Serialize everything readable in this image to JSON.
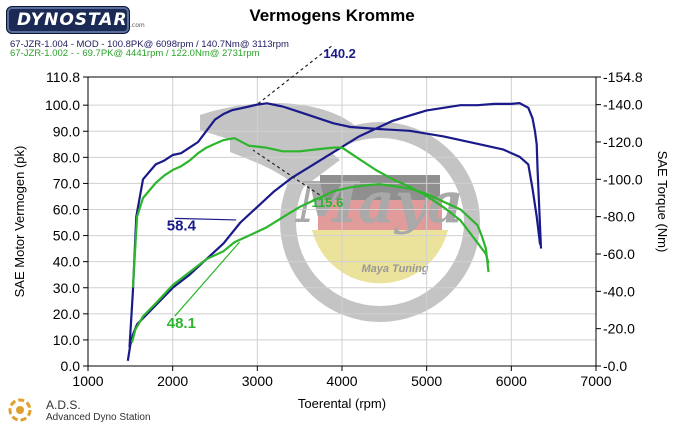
{
  "header": {
    "logo_text": "DYNOSTAR",
    "logo_suffix": ".com",
    "title": "Vermogens Kromme",
    "run1": "67-JZR-1.004 - MOD - 100.8PK@ 6098rpm / 140.7Nm@ 3113rpm",
    "run2": "67-JZR-1.002 - - 69.7PK@ 4441rpm / 122.0Nm@ 2731rpm"
  },
  "watermark": {
    "brand": "Maya",
    "subtitle": "Maya Tuning"
  },
  "footer": {
    "title": "A.D.S.",
    "subtitle": "Advanced Dyno Station"
  },
  "colors": {
    "run1": "#1a1a8a",
    "run2": "#2db52d",
    "grid": "#d0d0d0"
  },
  "chart_data": {
    "type": "line",
    "xlabel": "Toerental (rpm)",
    "ylabel_left": "SAE Motor Vermogen (pk)",
    "ylabel_right": "SAE Torque (Nm)",
    "xlim": [
      1000,
      7000
    ],
    "ylim_left": [
      0,
      110.8
    ],
    "ylim_right": [
      0,
      154.8
    ],
    "grid": true,
    "x_ticks": [
      "1000",
      "2000",
      "3000",
      "4000",
      "5000",
      "6000",
      "7000"
    ],
    "y_left_ticks": [
      "0.0",
      "10.0",
      "20.0",
      "30.0",
      "40.0",
      "50.0",
      "60.0",
      "70.0",
      "80.0",
      "90.0",
      "100.0",
      "110.8"
    ],
    "y_right_ticks": [
      "0.0",
      "20.0",
      "40.0",
      "60.0",
      "80.0",
      "100.0",
      "120.0",
      "140.0",
      "154.8"
    ],
    "series": [
      {
        "name": "67-JZR-1.004 power",
        "run": "run1",
        "axis": "left",
        "points": [
          [
            1470,
            2
          ],
          [
            1500,
            8
          ],
          [
            1530,
            12
          ],
          [
            1580,
            16
          ],
          [
            1700,
            20
          ],
          [
            1850,
            25
          ],
          [
            2000,
            30
          ],
          [
            2200,
            35
          ],
          [
            2400,
            41
          ],
          [
            2600,
            47
          ],
          [
            2800,
            55
          ],
          [
            3000,
            61
          ],
          [
            3200,
            67
          ],
          [
            3400,
            72
          ],
          [
            3600,
            76
          ],
          [
            3800,
            80
          ],
          [
            4000,
            84
          ],
          [
            4200,
            88
          ],
          [
            4400,
            91
          ],
          [
            4600,
            94
          ],
          [
            4800,
            96
          ],
          [
            5000,
            98
          ],
          [
            5200,
            99
          ],
          [
            5400,
            100
          ],
          [
            5600,
            100
          ],
          [
            5800,
            100.5
          ],
          [
            6000,
            100.5
          ],
          [
            6098,
            100.8
          ],
          [
            6200,
            99
          ],
          [
            6250,
            95
          ],
          [
            6280,
            90
          ],
          [
            6300,
            85
          ],
          [
            6310,
            75
          ],
          [
            6330,
            60
          ],
          [
            6350,
            45
          ]
        ]
      },
      {
        "name": "67-JZR-1.004 torque",
        "run": "run1",
        "axis": "right",
        "points": [
          [
            1490,
            10
          ],
          [
            1530,
            40
          ],
          [
            1570,
            80
          ],
          [
            1650,
            100
          ],
          [
            1800,
            108
          ],
          [
            1900,
            110
          ],
          [
            2000,
            113
          ],
          [
            2100,
            114
          ],
          [
            2200,
            117
          ],
          [
            2300,
            120
          ],
          [
            2400,
            126
          ],
          [
            2500,
            132
          ],
          [
            2600,
            135
          ],
          [
            2700,
            137
          ],
          [
            2800,
            138
          ],
          [
            2900,
            139
          ],
          [
            3000,
            140
          ],
          [
            3113,
            140.7
          ],
          [
            3300,
            139
          ],
          [
            3500,
            136
          ],
          [
            3700,
            133
          ],
          [
            3900,
            130
          ],
          [
            4100,
            128
          ],
          [
            4400,
            127
          ],
          [
            4800,
            126
          ],
          [
            5200,
            123
          ],
          [
            5600,
            119
          ],
          [
            5900,
            116
          ],
          [
            6100,
            112
          ],
          [
            6200,
            108
          ],
          [
            6250,
            95
          ],
          [
            6300,
            80
          ],
          [
            6340,
            65
          ]
        ]
      },
      {
        "name": "67-JZR-1.002 power",
        "run": "run2",
        "axis": "left",
        "points": [
          [
            1520,
            9
          ],
          [
            1560,
            14
          ],
          [
            1650,
            19
          ],
          [
            1800,
            24
          ],
          [
            2000,
            31
          ],
          [
            2200,
            36
          ],
          [
            2400,
            41
          ],
          [
            2600,
            44
          ],
          [
            2731,
            47.5
          ],
          [
            2900,
            50
          ],
          [
            3100,
            53
          ],
          [
            3300,
            57
          ],
          [
            3500,
            61
          ],
          [
            3700,
            64
          ],
          [
            3900,
            67
          ],
          [
            4100,
            68.5
          ],
          [
            4300,
            69.3
          ],
          [
            4441,
            69.7
          ],
          [
            4600,
            69
          ],
          [
            4800,
            68
          ],
          [
            5000,
            66
          ],
          [
            5200,
            63
          ],
          [
            5400,
            60
          ],
          [
            5500,
            57
          ],
          [
            5600,
            54
          ],
          [
            5650,
            50
          ],
          [
            5700,
            45
          ],
          [
            5730,
            36
          ]
        ]
      },
      {
        "name": "67-JZR-1.002 torque",
        "run": "run2",
        "axis": "right",
        "points": [
          [
            1530,
            42
          ],
          [
            1580,
            80
          ],
          [
            1650,
            90
          ],
          [
            1800,
            98
          ],
          [
            1900,
            102
          ],
          [
            2000,
            105
          ],
          [
            2100,
            107
          ],
          [
            2200,
            110
          ],
          [
            2300,
            114
          ],
          [
            2400,
            117
          ],
          [
            2500,
            119
          ],
          [
            2600,
            121
          ],
          [
            2731,
            122
          ],
          [
            2900,
            118
          ],
          [
            3100,
            117
          ],
          [
            3300,
            115
          ],
          [
            3500,
            115
          ],
          [
            3700,
            116
          ],
          [
            3900,
            117
          ],
          [
            4000,
            117
          ],
          [
            4200,
            111
          ],
          [
            4400,
            105
          ],
          [
            4600,
            100
          ],
          [
            4800,
            96
          ],
          [
            5000,
            91
          ],
          [
            5200,
            85
          ],
          [
            5400,
            78
          ],
          [
            5500,
            72
          ],
          [
            5600,
            66
          ],
          [
            5700,
            60
          ],
          [
            5730,
            55
          ]
        ]
      }
    ],
    "annotations": [
      {
        "text": "140.2",
        "run": "run1",
        "label_x": 3780,
        "label_y": 118,
        "point_x": 3000,
        "point_y": 140.2,
        "axis": "right",
        "style": "dashed"
      },
      {
        "text": "58.4",
        "run": "run1",
        "label_x": 1930,
        "label_y": 52,
        "point_x": 2750,
        "point_y": 56,
        "axis": "left",
        "style": "solid"
      },
      {
        "text": "115.6",
        "run": "run2",
        "label_x": 3640,
        "label_y": 61,
        "point_x": 2950,
        "point_y": 115.6,
        "axis": "right",
        "style": "dashed"
      },
      {
        "text": "48.1",
        "run": "run2",
        "label_x": 1930,
        "label_y": 14.5,
        "point_x": 2790,
        "point_y": 47.5,
        "axis": "left",
        "style": "solid"
      }
    ]
  }
}
